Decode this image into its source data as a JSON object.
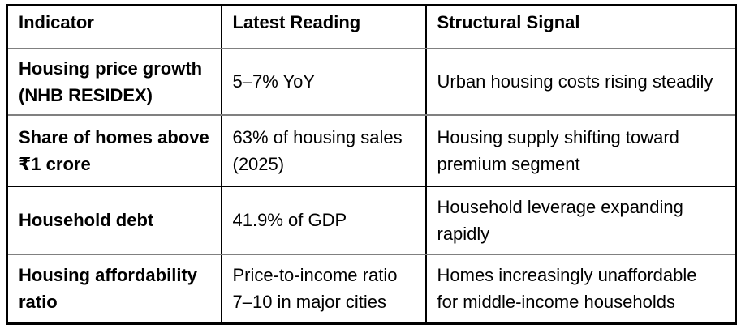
{
  "colors": {
    "outer_border": "#000000",
    "vertical_border": "#000000",
    "inner_horizontal_border": "#808080",
    "row2_row3_divider": "#000000",
    "text": "#000000",
    "background": "#ffffff"
  },
  "table": {
    "headers": {
      "indicator": "Indicator",
      "reading": "Latest Reading",
      "signal": "Structural Signal"
    },
    "rows": [
      {
        "indicator": "Housing price growth\n(NHB RESIDEX)",
        "reading": "5–7% YoY",
        "signal": "Urban housing costs rising steadily"
      },
      {
        "indicator": "Share of homes above\n₹1 crore",
        "reading": "63% of housing sales\n(2025)",
        "signal": "Housing supply shifting toward\npremium segment"
      },
      {
        "indicator": "Household debt",
        "reading": "41.9% of GDP",
        "signal": "Household leverage expanding\nrapidly"
      },
      {
        "indicator": "Housing affordability\nratio",
        "reading": "Price-to-income ratio\n7–10 in major cities",
        "signal": "Homes increasingly unaffordable\nfor middle-income households"
      }
    ]
  }
}
